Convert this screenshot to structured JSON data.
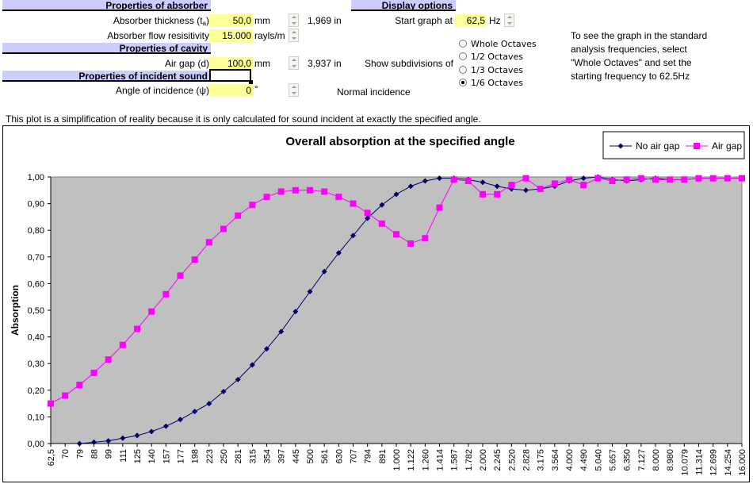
{
  "absorber": {
    "header": "Properties of absorber",
    "thickness_label": "Absorber thickness (t",
    "thickness_sub": "a",
    "thickness_close": ")",
    "thickness_value": "50,0",
    "thickness_unit": "mm",
    "thickness_in": "1,969",
    "thickness_in_unit": "in",
    "flow_label": "Absorber flow resisitivity",
    "flow_value": "15.000",
    "flow_unit": "rayls/m"
  },
  "cavity": {
    "header": "Properties of cavity",
    "gap_label": "Air gap (d)",
    "gap_value": "100,0",
    "gap_unit": "mm",
    "gap_in": "3,937",
    "gap_in_unit": "in"
  },
  "incident": {
    "header": "Properties of incident sound",
    "angle_label": "Angle of incidence (ψ)",
    "angle_value": "0",
    "angle_unit": "°",
    "angle_note": "Normal incidence"
  },
  "display": {
    "header": "Display options",
    "start_label": "Start graph at",
    "start_value": "62,5",
    "start_unit": "Hz",
    "subdiv_label": "Show subdivisions of",
    "options": [
      "Whole Octaves",
      "1/2 Octaves",
      "1/3 Octaves",
      "1/6 Octaves"
    ],
    "selected": "1/6 Octaves",
    "hint": [
      "To see the graph in the standard",
      "analysis frequencies, select",
      "\"Whole Octaves\" and set the",
      "starting frequency to 62.5Hz"
    ]
  },
  "disclaimer": "This plot is a simplification of reality because it is only calculated for sound incident at exactly the specified angle.",
  "colors": {
    "series_no_gap": "#000066",
    "series_gap": "#ff00ff",
    "plot_bg": "#c0c0c0",
    "section_bg": "#ccccff",
    "input_bg": "#ffff99"
  },
  "chart_data": {
    "type": "line",
    "title": "Overall absorption at the specified angle",
    "ylabel": "Absorption",
    "xlabel": "",
    "ylim": [
      0,
      1
    ],
    "y_ticks": [
      "0,00",
      "0,10",
      "0,20",
      "0,30",
      "0,40",
      "0,50",
      "0,60",
      "0,70",
      "0,80",
      "0,90",
      "1,00"
    ],
    "grid": false,
    "legend": "top-right",
    "categories": [
      "62,5",
      "70",
      "79",
      "88",
      "99",
      "111",
      "125",
      "140",
      "157",
      "177",
      "198",
      "223",
      "250",
      "281",
      "315",
      "354",
      "397",
      "445",
      "500",
      "561",
      "630",
      "707",
      "794",
      "891",
      "1.000",
      "1.122",
      "1.260",
      "1.414",
      "1.587",
      "1.782",
      "2.000",
      "2.245",
      "2.520",
      "2.828",
      "3.175",
      "3.564",
      "4.000",
      "4.490",
      "5.040",
      "5.657",
      "6.350",
      "7.127",
      "8.000",
      "8.980",
      "10.079",
      "11.314",
      "12.699",
      "14.254",
      "16.000"
    ],
    "series": [
      {
        "name": "No air gap",
        "marker": "diamond",
        "values": [
          null,
          null,
          0.0,
          0.005,
          0.01,
          0.02,
          0.03,
          0.045,
          0.065,
          0.09,
          0.12,
          0.15,
          0.195,
          0.24,
          0.295,
          0.355,
          0.42,
          0.495,
          0.57,
          0.645,
          0.715,
          0.78,
          0.845,
          0.895,
          0.935,
          0.965,
          0.985,
          0.995,
          0.995,
          0.99,
          0.98,
          0.965,
          0.955,
          0.95,
          0.955,
          0.965,
          0.985,
          0.995,
          1.0,
          0.99,
          0.985,
          0.99,
          0.995,
          0.99,
          0.99,
          0.995,
          0.995,
          0.995,
          0.995
        ]
      },
      {
        "name": "Air gap",
        "marker": "square",
        "values": [
          0.15,
          0.18,
          0.22,
          0.265,
          0.315,
          0.37,
          0.43,
          0.495,
          0.56,
          0.63,
          0.69,
          0.755,
          0.805,
          0.855,
          0.895,
          0.925,
          0.945,
          0.95,
          0.95,
          0.945,
          0.925,
          0.9,
          0.865,
          0.825,
          0.785,
          0.75,
          0.77,
          0.885,
          0.99,
          0.985,
          0.935,
          0.935,
          0.97,
          0.995,
          0.955,
          0.975,
          0.99,
          0.97,
          0.995,
          0.985,
          0.99,
          0.995,
          0.99,
          0.99,
          0.99,
          0.995,
          0.995,
          0.995,
          0.995
        ]
      }
    ]
  }
}
